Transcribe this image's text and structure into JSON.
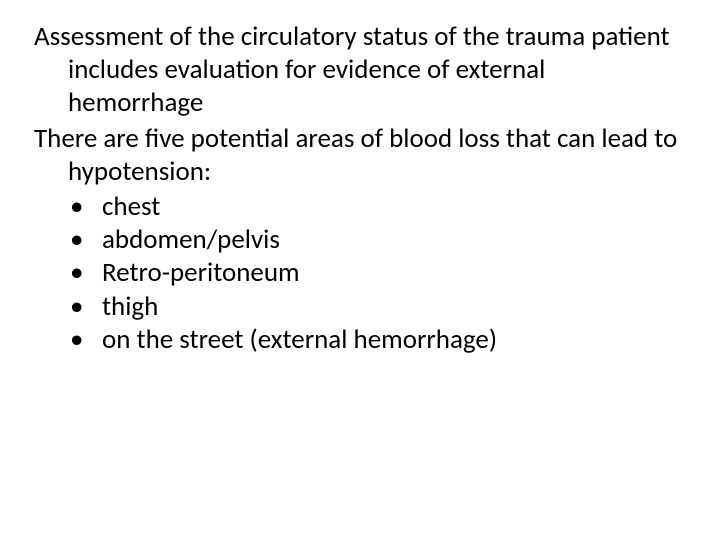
{
  "text_color": "#000000",
  "background_color": "#ffffff",
  "font_family": "Calibri",
  "font_size_pt": 20,
  "paragraphs": [
    "Assessment of the circulatory status of the trauma patient includes evaluation for evidence of external hemorrhage",
    "There are five potential areas of blood loss that can lead to hypotension:"
  ],
  "bullets": [
    "chest",
    "abdomen/pelvis",
    "Retro-peritoneum",
    "thigh",
    "on the street (external hemorrhage)"
  ]
}
